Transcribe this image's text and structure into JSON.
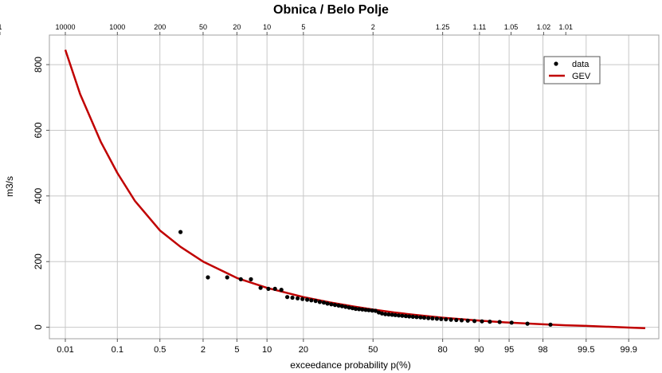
{
  "chart_data": {
    "type": "scatter",
    "title": "Obnica / Belo Polje",
    "xlabel": "exceedance probability p(%)",
    "ylabel": "m3/s",
    "x_scale": "normal-probability",
    "xlim": [
      0.01,
      99.95
    ],
    "ylim": [
      -35,
      890
    ],
    "grid": true,
    "legend_position": "top-right",
    "x_ticks": [
      "0.01",
      "0.1",
      "0.5",
      "2",
      "5",
      "10",
      "20",
      "50",
      "80",
      "90",
      "95",
      "98",
      "99.5",
      "99.9"
    ],
    "x_tick_values": [
      0.01,
      0.1,
      0.5,
      2,
      5,
      10,
      20,
      50,
      80,
      90,
      95,
      98,
      99.5,
      99.9
    ],
    "y_ticks": [
      "0",
      "200",
      "400",
      "600",
      "800"
    ],
    "y_tick_values": [
      0,
      200,
      400,
      600,
      800
    ],
    "top_ticks": [
      "10000",
      "1000",
      "200",
      "50",
      "20",
      "10",
      "5",
      "2",
      "1.25",
      "1.11",
      "1.05",
      "1.02",
      "1.01",
      "1"
    ],
    "top_tick_values": [
      10000,
      1000,
      200,
      50,
      20,
      10,
      5,
      2,
      1.25,
      1.11,
      1.05,
      1.02,
      1.01,
      1
    ],
    "series": [
      {
        "name": "data",
        "kind": "points",
        "color": "#000000",
        "points": [
          [
            1.0,
            290
          ],
          [
            2.3,
            152
          ],
          [
            3.9,
            152
          ],
          [
            5.5,
            146
          ],
          [
            7.0,
            146
          ],
          [
            8.7,
            120
          ],
          [
            10.3,
            117
          ],
          [
            11.8,
            117
          ],
          [
            13.4,
            114
          ],
          [
            15.0,
            92
          ],
          [
            16.5,
            90
          ],
          [
            18.1,
            88
          ],
          [
            19.7,
            86
          ],
          [
            21.3,
            84
          ],
          [
            22.8,
            82
          ],
          [
            24.4,
            80
          ],
          [
            26.0,
            77
          ],
          [
            27.6,
            75
          ],
          [
            29.1,
            72
          ],
          [
            30.7,
            70
          ],
          [
            32.3,
            68
          ],
          [
            33.9,
            66
          ],
          [
            35.4,
            64
          ],
          [
            37.0,
            62
          ],
          [
            38.6,
            60
          ],
          [
            40.2,
            58
          ],
          [
            41.7,
            56
          ],
          [
            43.3,
            55
          ],
          [
            44.9,
            54
          ],
          [
            46.5,
            53
          ],
          [
            48.0,
            52
          ],
          [
            49.6,
            51
          ],
          [
            51.2,
            50
          ],
          [
            52.8,
            45
          ],
          [
            54.3,
            42
          ],
          [
            55.9,
            40
          ],
          [
            57.5,
            39
          ],
          [
            59.1,
            38
          ],
          [
            60.6,
            37
          ],
          [
            62.2,
            36
          ],
          [
            63.8,
            35
          ],
          [
            65.4,
            34
          ],
          [
            66.9,
            33
          ],
          [
            68.5,
            32
          ],
          [
            70.1,
            31
          ],
          [
            71.7,
            30
          ],
          [
            73.2,
            29
          ],
          [
            74.8,
            28
          ],
          [
            76.4,
            27
          ],
          [
            78.0,
            26
          ],
          [
            79.5,
            25
          ],
          [
            81.1,
            24
          ],
          [
            82.7,
            23
          ],
          [
            84.3,
            22
          ],
          [
            85.8,
            21
          ],
          [
            87.4,
            20
          ],
          [
            89.0,
            19
          ],
          [
            90.6,
            18
          ],
          [
            92.1,
            17
          ],
          [
            93.7,
            16
          ],
          [
            95.3,
            14
          ],
          [
            96.9,
            11
          ],
          [
            98.4,
            8
          ]
        ]
      },
      {
        "name": "GEV",
        "kind": "line",
        "color": "#c00000",
        "points": [
          [
            0.01,
            845
          ],
          [
            0.02,
            710
          ],
          [
            0.05,
            565
          ],
          [
            0.1,
            470
          ],
          [
            0.2,
            385
          ],
          [
            0.5,
            295
          ],
          [
            1,
            245
          ],
          [
            2,
            200
          ],
          [
            5,
            150
          ],
          [
            10,
            120
          ],
          [
            20,
            92
          ],
          [
            30,
            76
          ],
          [
            40,
            64
          ],
          [
            50,
            54
          ],
          [
            60,
            45
          ],
          [
            70,
            37
          ],
          [
            80,
            29
          ],
          [
            90,
            20
          ],
          [
            95,
            14
          ],
          [
            98,
            9
          ],
          [
            99,
            6
          ],
          [
            99.5,
            4
          ],
          [
            99.9,
            -1
          ],
          [
            99.95,
            -3
          ]
        ]
      }
    ]
  }
}
